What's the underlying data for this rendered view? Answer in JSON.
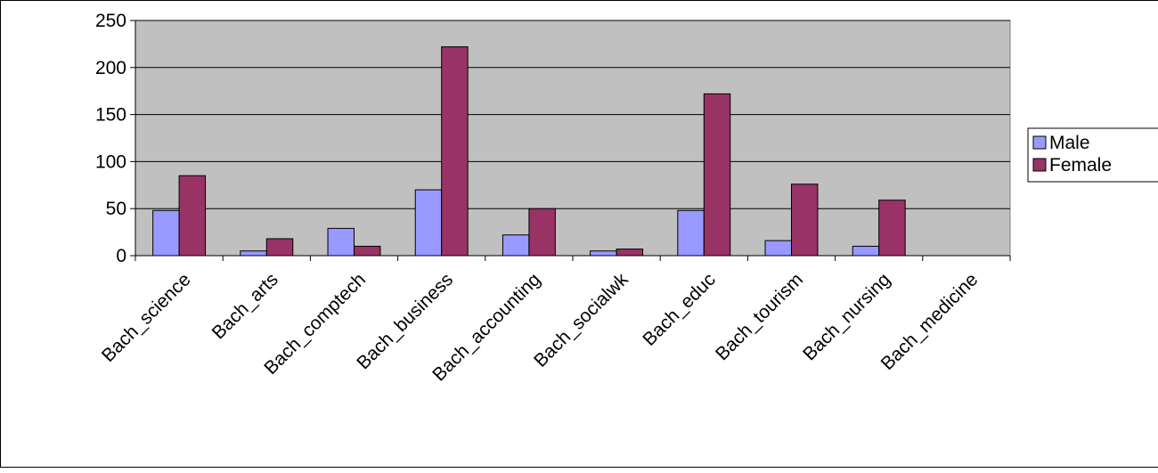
{
  "chart_data": {
    "type": "bar",
    "title": "",
    "xlabel": "",
    "ylabel": "",
    "categories": [
      "Bach_science",
      "Bach_arts",
      "Bach_comptech",
      "Bach_business",
      "Bach_accounting",
      "Bach_socialwk",
      "Bach_educ",
      "Bach_tourism",
      "Bach_nursing",
      "Bach_medicine"
    ],
    "series": [
      {
        "name": "Male",
        "values": [
          48,
          5,
          29,
          70,
          22,
          5,
          48,
          16,
          10,
          0
        ],
        "color": "#9999ff"
      },
      {
        "name": "Female",
        "values": [
          85,
          18,
          10,
          222,
          50,
          7,
          172,
          76,
          59,
          0
        ],
        "color": "#993366"
      }
    ],
    "ylim": [
      0,
      250
    ],
    "yticks": [
      "0",
      "50",
      "100",
      "150",
      "200",
      "250"
    ],
    "grid": true,
    "plot_background": "#c0c0c0",
    "legend_position": "right"
  }
}
